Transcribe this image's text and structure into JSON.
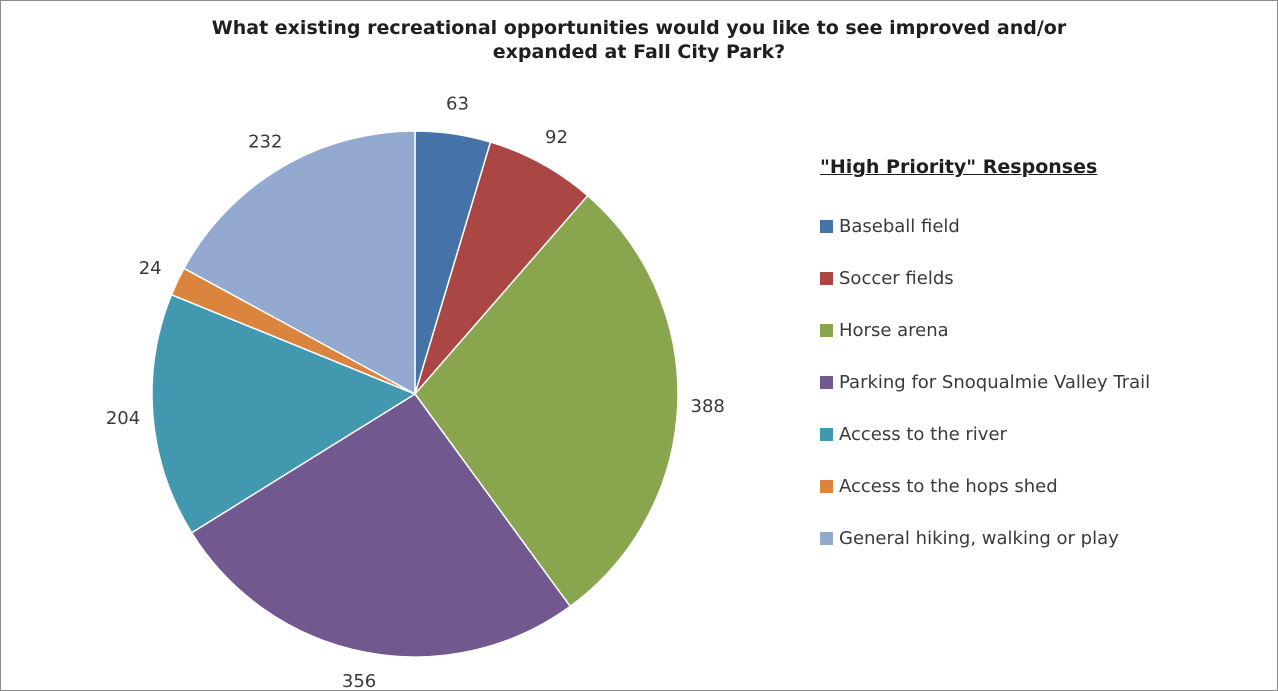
{
  "chart_data": {
    "type": "pie",
    "title": "What existing recreational opportunities would you like to see improved and/or expanded at Fall City Park?",
    "title_lines": [
      "What existing recreational opportunities would you like to see improved and/or",
      "expanded at Fall City Park?"
    ],
    "legend_title": "\"High Priority\" Responses",
    "legend_position": "right",
    "categories": [
      "Baseball field",
      "Soccer fields",
      "Horse arena",
      "Parking for Snoqualmie Valley Trail",
      "Access to the river",
      "Access to the hops shed",
      "General hiking, walking or play"
    ],
    "values": [
      63,
      92,
      388,
      356,
      204,
      24,
      232
    ],
    "value_labels": [
      "63",
      "92",
      "388",
      "356",
      "204",
      "24",
      "232"
    ],
    "colors": [
      "#4572A7",
      "#AA4643",
      "#89A54E",
      "#71588F",
      "#4198AF",
      "#DB843D",
      "#93A9CF"
    ]
  }
}
